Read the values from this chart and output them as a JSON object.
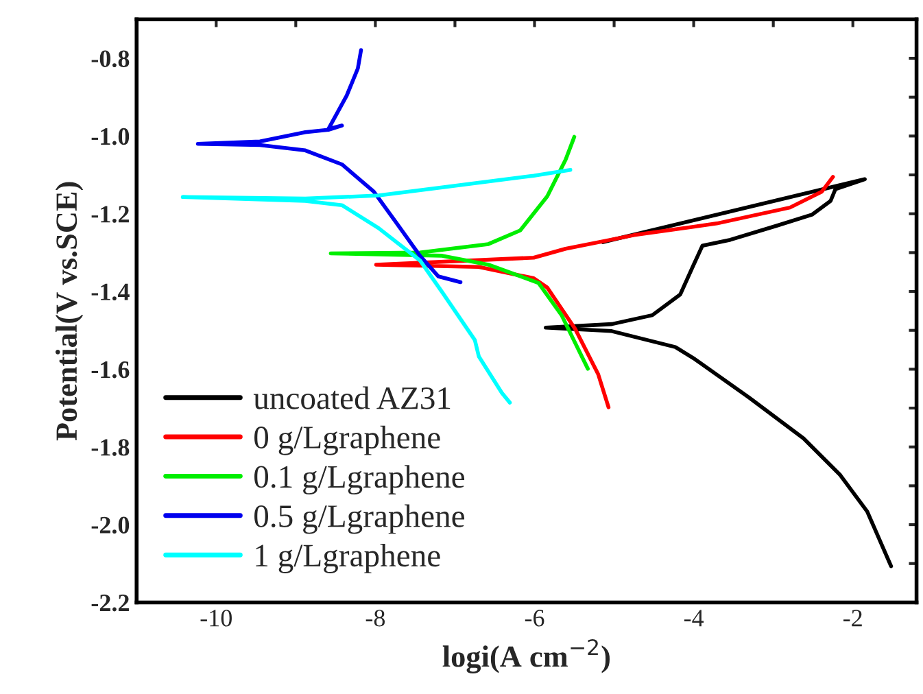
{
  "chart_data": {
    "type": "line",
    "xlabel": "logi(A cm$^{−2}$)",
    "ylabel": "Potential(V vs.SCE)",
    "xlim": [
      -11,
      -1.2
    ],
    "ylim": [
      -2.2,
      -0.7
    ],
    "xticks": [
      -10,
      {
        "value": -9,
        "label": null
      },
      -8,
      {
        "value": -7,
        "label": null
      },
      -6,
      {
        "value": -5,
        "label": null
      },
      -4,
      {
        "value": -3,
        "label": null
      },
      -2
    ],
    "yticks": [
      {
        "value": -2.2,
        "label": "-2.2"
      },
      {
        "value": -2.1,
        "label": null
      },
      {
        "value": -2.0,
        "label": "-2.0"
      },
      {
        "value": -1.9,
        "label": null
      },
      {
        "value": -1.8,
        "label": "-1.8"
      },
      {
        "value": -1.7,
        "label": null
      },
      {
        "value": -1.6,
        "label": "-1.6"
      },
      {
        "value": -1.5,
        "label": null
      },
      {
        "value": -1.4,
        "label": "-1.4"
      },
      {
        "value": -1.3,
        "label": null
      },
      {
        "value": -1.2,
        "label": "-1.2"
      },
      {
        "value": -1.1,
        "label": null
      },
      {
        "value": -1.0,
        "label": "-1.0"
      },
      {
        "value": -0.9,
        "label": null
      },
      {
        "value": -0.8,
        "label": "-0.8"
      }
    ],
    "grid": false,
    "legend": "bottom left",
    "marker": "none",
    "line_style": "solid",
    "series": [
      {
        "name": "uncoated AZ31",
        "color": "#000000",
        "x": [
          -1.52,
          -1.82,
          -2.16,
          -2.62,
          -3.31,
          -4.0,
          -4.23,
          -5.03,
          -5.86,
          -5.03,
          -4.52,
          -4.17,
          -4.0,
          -3.89,
          -3.54,
          -2.96,
          -2.51,
          -2.28,
          -2.22,
          -1.85,
          -5.14
        ],
        "values": [
          -2.107,
          -1.966,
          -1.872,
          -1.778,
          -1.672,
          -1.572,
          -1.543,
          -1.502,
          -1.493,
          -1.484,
          -1.461,
          -1.408,
          -1.331,
          -1.282,
          -1.267,
          -1.231,
          -1.202,
          -1.167,
          -1.137,
          -1.111,
          -1.273
        ]
      },
      {
        "name": "0 g/Lgraphene",
        "color": "#ff0000",
        "x": [
          -5.07,
          -5.2,
          -5.49,
          -5.84,
          -6.01,
          -6.7,
          -7.99,
          -6.01,
          -5.61,
          -4.75,
          -3.71,
          -2.79,
          -2.39,
          -2.25
        ],
        "values": [
          -1.698,
          -1.613,
          -1.496,
          -1.39,
          -1.366,
          -1.337,
          -1.331,
          -1.313,
          -1.29,
          -1.255,
          -1.225,
          -1.184,
          -1.143,
          -1.105
        ]
      },
      {
        "name": "0.1 g/Lgraphene",
        "color": "#00ee00",
        "x": [
          -5.33,
          -5.66,
          -5.95,
          -6.58,
          -7.16,
          -8.56,
          -7.44,
          -6.58,
          -6.18,
          -5.84,
          -5.61,
          -5.5
        ],
        "values": [
          -1.599,
          -1.461,
          -1.378,
          -1.331,
          -1.308,
          -1.302,
          -1.3,
          -1.278,
          -1.243,
          -1.155,
          -1.061,
          -1.002
        ]
      },
      {
        "name": "0.5 g/Lgraphene",
        "color": "#0000ee",
        "x": [
          -6.93,
          -7.21,
          -7.44,
          -7.73,
          -8.02,
          -8.42,
          -8.88,
          -9.45,
          -10.23,
          -9.45,
          -8.88,
          -8.59,
          -8.42,
          -8.59,
          -8.36,
          -8.22,
          -8.18
        ],
        "values": [
          -1.376,
          -1.361,
          -1.308,
          -1.225,
          -1.143,
          -1.073,
          -1.037,
          -1.023,
          -1.02,
          -1.014,
          -0.99,
          -0.984,
          -0.973,
          -0.982,
          -0.896,
          -0.826,
          -0.779
        ]
      },
      {
        "name": "1 g/Lgraphene",
        "color": "#00ffff",
        "x": [
          -6.31,
          -6.41,
          -6.7,
          -6.75,
          -7.16,
          -7.44,
          -7.96,
          -8.42,
          -8.88,
          -10.42,
          -8.88,
          -7.96,
          -7.16,
          -6.01,
          -5.55
        ],
        "values": [
          -1.686,
          -1.661,
          -1.567,
          -1.525,
          -1.402,
          -1.32,
          -1.237,
          -1.178,
          -1.167,
          -1.157,
          -1.161,
          -1.153,
          -1.132,
          -1.102,
          -1.087
        ]
      }
    ]
  }
}
